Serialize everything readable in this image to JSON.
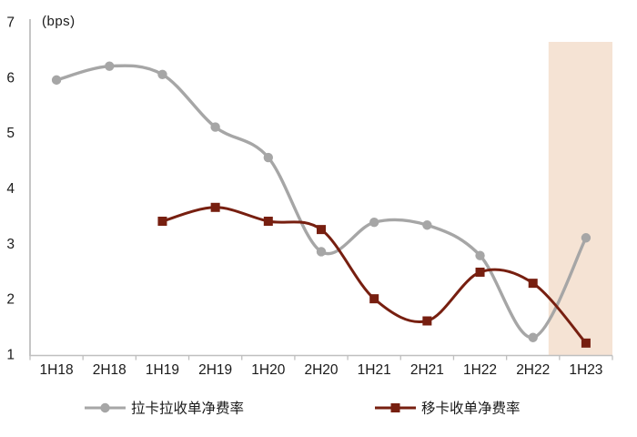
{
  "chart_data": {
    "type": "line",
    "title": "",
    "unit_label": "(bps)",
    "categories": [
      "1H18",
      "2H18",
      "1H19",
      "2H19",
      "1H20",
      "2H20",
      "1H21",
      "2H21",
      "1H22",
      "2H22",
      "1H23"
    ],
    "series": [
      {
        "name": "拉卡拉收单净费率",
        "color": "#a6a6a6",
        "marker": "circle",
        "values": [
          5.95,
          6.2,
          6.05,
          5.1,
          4.55,
          2.85,
          3.38,
          3.33,
          2.78,
          1.3,
          3.1
        ]
      },
      {
        "name": "移卡收单净费率",
        "color": "#771f10",
        "marker": "square",
        "values": [
          null,
          null,
          3.4,
          3.65,
          3.4,
          3.25,
          2.0,
          1.6,
          2.48,
          2.28,
          1.2
        ]
      }
    ],
    "xlabel": "",
    "ylabel": "",
    "ylim": [
      1,
      7
    ],
    "yticks": [
      1,
      2,
      3,
      4,
      5,
      6,
      7
    ],
    "grid": false,
    "legend_position": "bottom",
    "highlight": {
      "category": "1H23",
      "color": "#f5e3d4"
    }
  },
  "colors": {
    "axis": "#bfbfbf",
    "text": "#1a1a1a",
    "background": "#ffffff"
  }
}
